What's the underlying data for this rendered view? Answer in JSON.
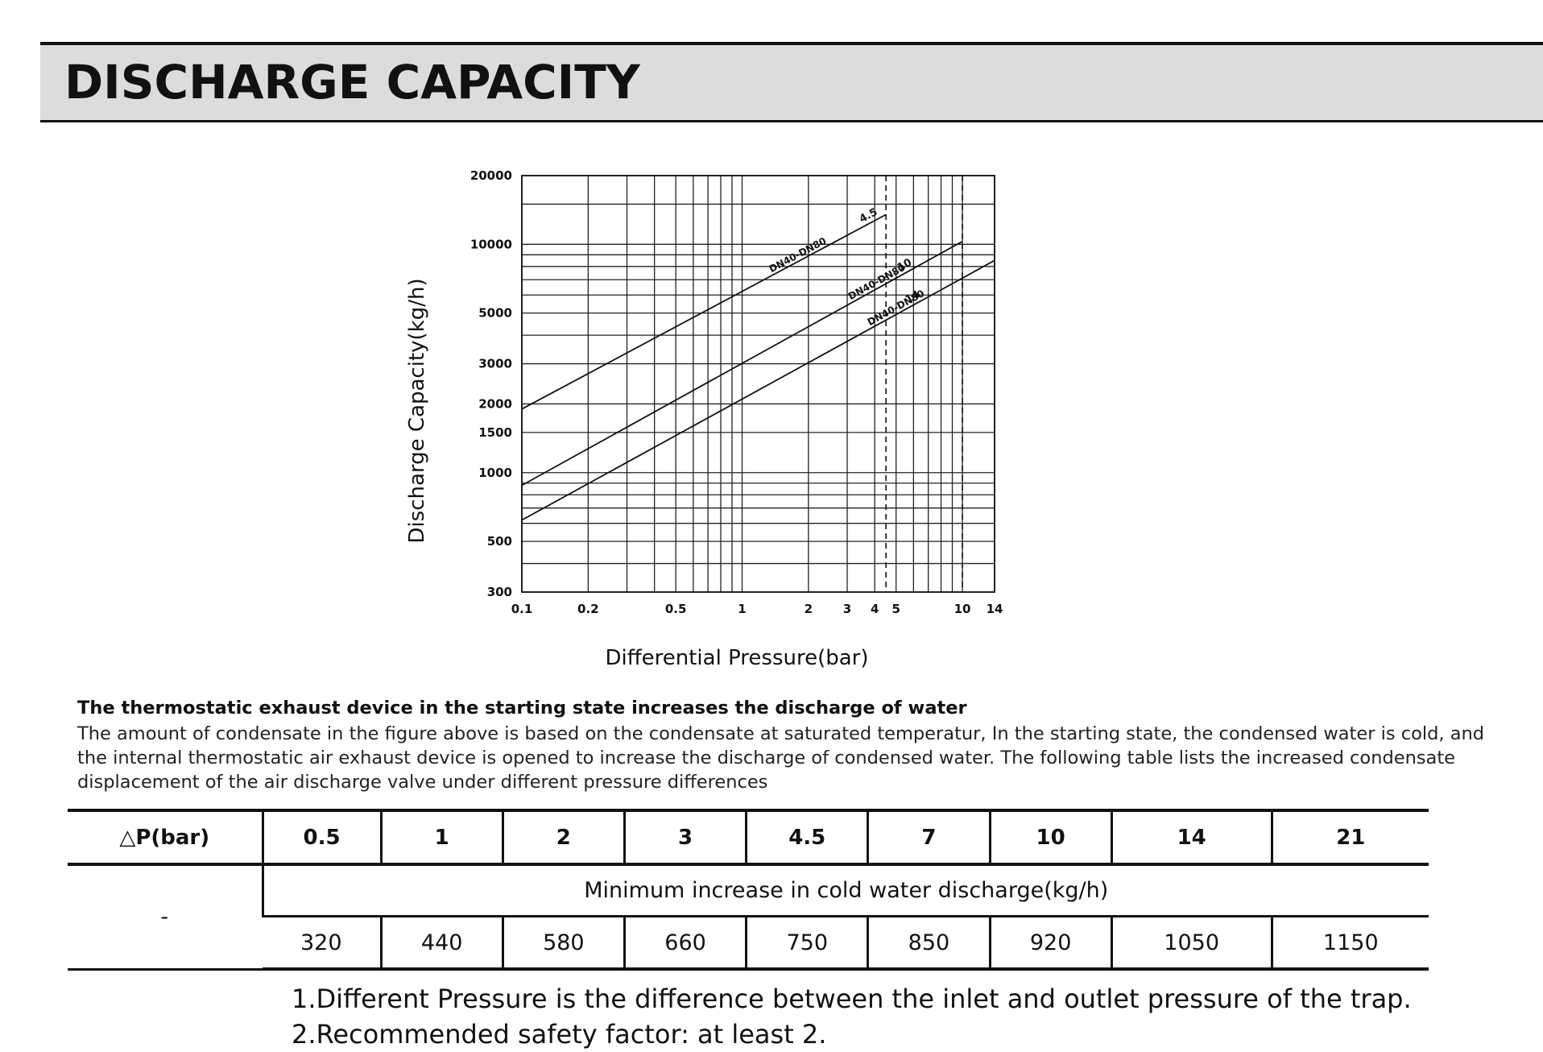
{
  "header": {
    "title": "DISCHARGE CAPACITY"
  },
  "chart_data": {
    "type": "line",
    "title": "",
    "xlabel": "Differential Pressure(bar)",
    "ylabel": "Discharge Capacity(kg/h)",
    "x_scale": "log",
    "y_scale": "log",
    "xlim": [
      0.1,
      14
    ],
    "ylim": [
      300,
      20000
    ],
    "x_ticks": [
      {
        "value": 0.1,
        "label": "0.1"
      },
      {
        "value": 0.2,
        "label": "0.2"
      },
      {
        "value": 0.5,
        "label": "0.5"
      },
      {
        "value": 1,
        "label": "1"
      },
      {
        "value": 2,
        "label": "2"
      },
      {
        "value": 3,
        "label": "3"
      },
      {
        "value": 4,
        "label": "4"
      },
      {
        "value": 5,
        "label": "5"
      },
      {
        "value": 10,
        "label": "10"
      },
      {
        "value": 14,
        "label": "14"
      }
    ],
    "y_ticks": [
      {
        "value": 300,
        "label": "300"
      },
      {
        "value": 500,
        "label": "500"
      },
      {
        "value": 1000,
        "label": "1000"
      },
      {
        "value": 1500,
        "label": "1500"
      },
      {
        "value": 2000,
        "label": "2000"
      },
      {
        "value": 3000,
        "label": "3000"
      },
      {
        "value": 5000,
        "label": "5000"
      },
      {
        "value": 10000,
        "label": "10000"
      },
      {
        "value": 20000,
        "label": "20000"
      }
    ],
    "grid": true,
    "dashed_lines": [
      4.5,
      10
    ],
    "series": [
      {
        "name": "DN40-DN80",
        "tag": "4.5",
        "x": [
          0.1,
          4.5
        ],
        "y": [
          1900,
          13500
        ]
      },
      {
        "name": "DN40-DN80",
        "tag": "10",
        "x": [
          0.1,
          10
        ],
        "y": [
          880,
          10300
        ]
      },
      {
        "name": "DN40-DN80",
        "tag": "14",
        "x": [
          0.1,
          14
        ],
        "y": [
          620,
          8500
        ]
      }
    ]
  },
  "intro": {
    "heading": "The thermostatic exhaust device in the starting state increases the discharge of  water",
    "lines": [
      "The amount of condensate in the figure above is based on the condensate at saturated temperatur, In the starting state, the condensed water is cold, and",
      "the internal thermostatic air exhaust device is opened to increase the discharge of condensed water. The following table lists the increased condensate",
      "displacement of the air discharge valve under different pressure differences"
    ]
  },
  "table": {
    "header_label": "△P(bar)",
    "pressures": [
      "0.5",
      "1",
      "2",
      "3",
      "4.5",
      "7",
      "10",
      "14",
      "21"
    ],
    "dash": "-",
    "caption": "Minimum increase in cold water discharge(kg/h)",
    "values": [
      "320",
      "440",
      "580",
      "660",
      "750",
      "850",
      "920",
      "1050",
      "1150"
    ]
  },
  "notes": [
    "1.Different Pressure is the difference between the inlet and outlet pressure of the trap.",
    "2.Recommended safety factor: at least 2."
  ]
}
